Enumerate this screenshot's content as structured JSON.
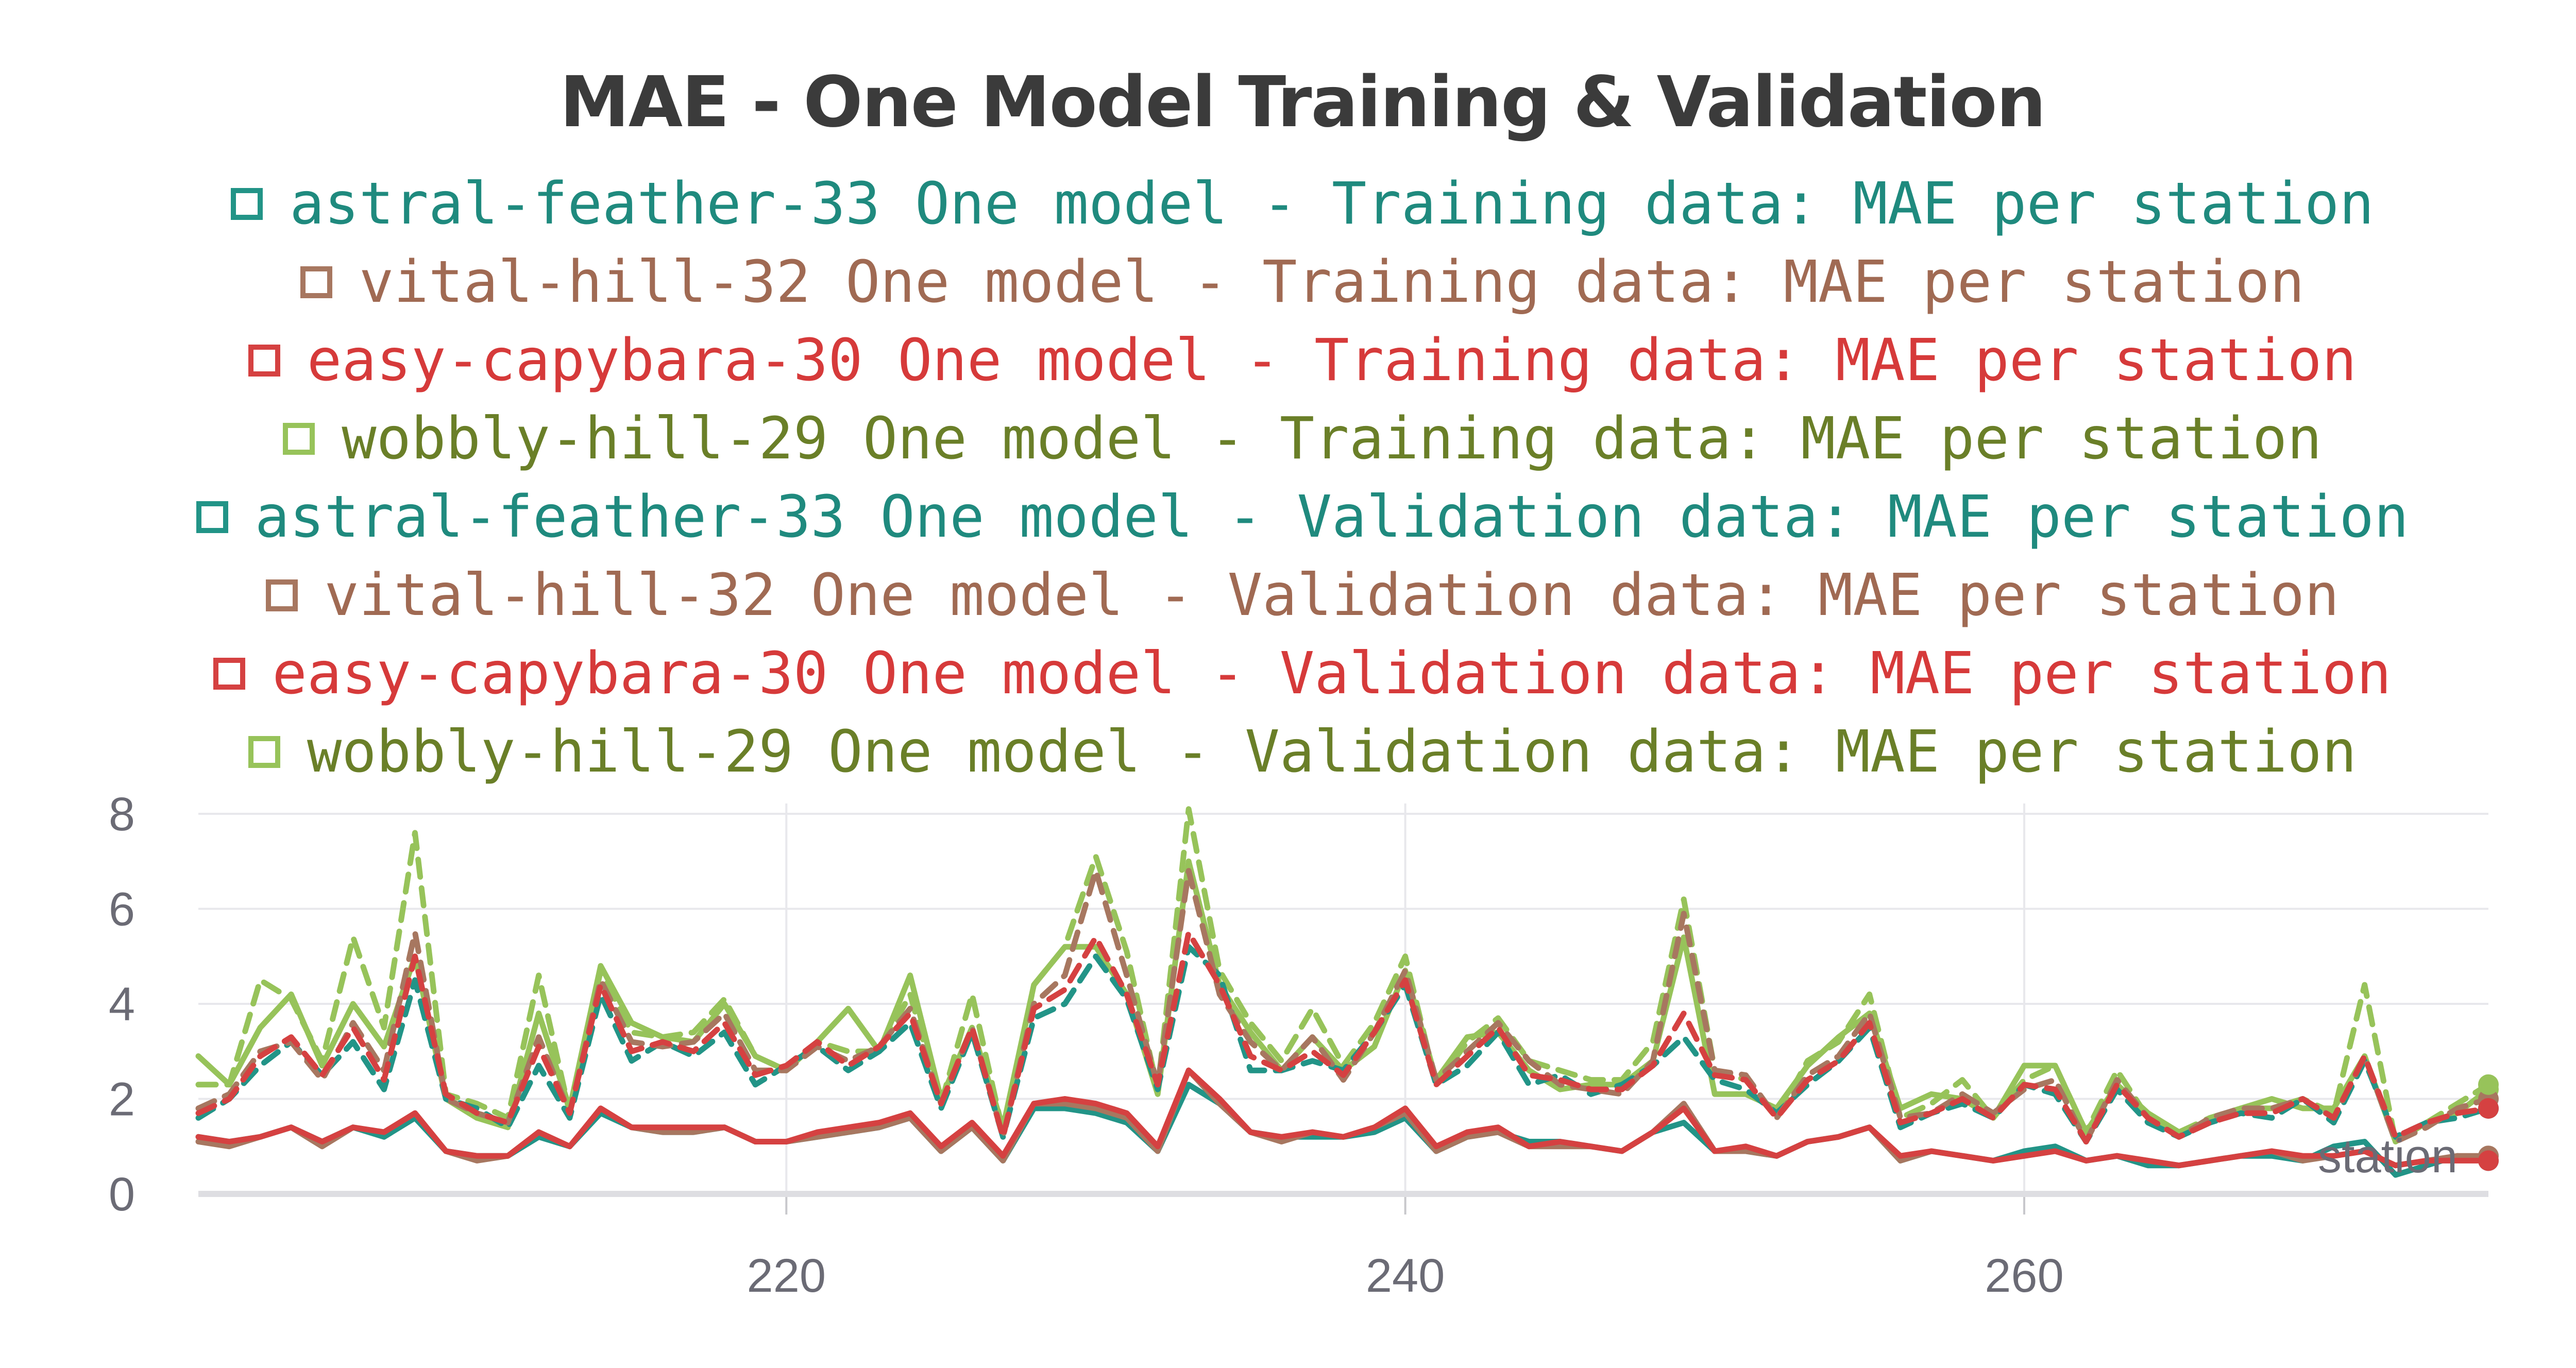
{
  "chart_data": {
    "type": "line",
    "title": "MAE - One Model Training & Validation",
    "xlabel": "station",
    "ylabel": "",
    "xlim": [
      201,
      275
    ],
    "ylim": [
      0,
      8
    ],
    "x_ticks": [
      220,
      240,
      260
    ],
    "y_ticks": [
      0,
      2,
      4,
      6,
      8
    ],
    "grid": true,
    "legend_position": "top",
    "x": [
      201,
      202,
      203,
      204,
      205,
      206,
      207,
      208,
      209,
      210,
      211,
      212,
      213,
      214,
      215,
      216,
      217,
      218,
      219,
      220,
      221,
      222,
      223,
      224,
      225,
      226,
      227,
      228,
      229,
      230,
      231,
      232,
      233,
      234,
      235,
      236,
      237,
      238,
      239,
      240,
      241,
      242,
      243,
      244,
      245,
      246,
      247,
      248,
      249,
      250,
      251,
      252,
      253,
      254,
      255,
      256,
      257,
      258,
      259,
      260,
      261,
      262,
      263,
      264,
      265,
      266,
      267,
      268,
      269,
      270,
      271,
      272,
      273,
      274,
      275
    ],
    "series": [
      {
        "name": "astral-feather-33 One model - Training data: MAE per station",
        "color": "#229487",
        "dash": "solid",
        "values": [
          1.2,
          1.1,
          1.2,
          1.4,
          1.1,
          1.4,
          1.2,
          1.6,
          0.9,
          0.8,
          0.8,
          1.2,
          1.0,
          1.7,
          1.4,
          1.3,
          1.3,
          1.4,
          1.1,
          1.1,
          1.2,
          1.3,
          1.4,
          1.6,
          0.9,
          1.4,
          0.7,
          1.8,
          1.8,
          1.7,
          1.5,
          0.9,
          2.3,
          1.9,
          1.3,
          1.2,
          1.2,
          1.2,
          1.3,
          1.6,
          0.9,
          1.2,
          1.3,
          1.1,
          1.1,
          1.0,
          0.9,
          1.3,
          1.5,
          0.9,
          0.9,
          0.8,
          1.1,
          1.2,
          1.4,
          0.7,
          0.9,
          0.8,
          0.7,
          0.9,
          1.0,
          0.7,
          0.8,
          0.6,
          0.6,
          0.7,
          0.8,
          0.8,
          0.7,
          1.0,
          1.1,
          0.4,
          0.6,
          0.8,
          0.7
        ]
      },
      {
        "name": "vital-hill-32 One model - Training data: MAE per station",
        "color": "#a77760",
        "dash": "solid",
        "values": [
          1.1,
          1.0,
          1.2,
          1.4,
          1.0,
          1.4,
          1.3,
          1.7,
          0.9,
          0.7,
          0.8,
          1.3,
          1.0,
          1.8,
          1.4,
          1.3,
          1.3,
          1.4,
          1.1,
          1.1,
          1.2,
          1.3,
          1.4,
          1.6,
          0.9,
          1.4,
          0.7,
          1.9,
          1.9,
          1.8,
          1.6,
          0.9,
          2.6,
          1.9,
          1.3,
          1.1,
          1.3,
          1.2,
          1.4,
          1.7,
          0.9,
          1.2,
          1.3,
          1.0,
          1.0,
          1.0,
          0.9,
          1.3,
          1.9,
          0.9,
          0.9,
          0.8,
          1.1,
          1.2,
          1.4,
          0.7,
          0.9,
          0.8,
          0.7,
          0.8,
          0.9,
          0.7,
          0.8,
          0.7,
          0.6,
          0.7,
          0.8,
          0.9,
          0.7,
          0.8,
          0.9,
          0.6,
          0.7,
          0.8,
          0.8
        ]
      },
      {
        "name": "easy-capybara-30 One model - Training data: MAE per station",
        "color": "#d54141",
        "dash": "solid",
        "values": [
          1.2,
          1.1,
          1.2,
          1.4,
          1.1,
          1.4,
          1.3,
          1.7,
          0.9,
          0.8,
          0.8,
          1.3,
          1.0,
          1.8,
          1.4,
          1.4,
          1.4,
          1.4,
          1.1,
          1.1,
          1.3,
          1.4,
          1.5,
          1.7,
          1.0,
          1.5,
          0.8,
          1.9,
          2.0,
          1.9,
          1.7,
          1.0,
          2.6,
          2.0,
          1.3,
          1.2,
          1.3,
          1.2,
          1.4,
          1.8,
          1.0,
          1.3,
          1.4,
          1.0,
          1.1,
          1.0,
          0.9,
          1.3,
          1.8,
          0.9,
          1.0,
          0.8,
          1.1,
          1.2,
          1.4,
          0.8,
          0.9,
          0.8,
          0.7,
          0.8,
          0.9,
          0.7,
          0.8,
          0.7,
          0.6,
          0.7,
          0.8,
          0.9,
          0.8,
          0.8,
          0.9,
          0.6,
          0.7,
          0.7,
          0.7
        ]
      },
      {
        "name": "wobbly-hill-29 One model - Training data: MAE per station",
        "color": "#97c35a",
        "dash": "solid",
        "values": [
          2.9,
          2.3,
          3.5,
          4.2,
          2.7,
          4.0,
          3.1,
          5.0,
          2.0,
          1.6,
          1.4,
          3.8,
          1.8,
          4.8,
          3.6,
          3.3,
          3.2,
          4.0,
          2.9,
          2.6,
          3.2,
          3.9,
          3.0,
          4.6,
          2.0,
          3.5,
          1.4,
          4.4,
          5.2,
          5.2,
          4.2,
          2.1,
          7.0,
          4.4,
          3.4,
          2.6,
          3.3,
          2.6,
          3.1,
          4.7,
          2.4,
          3.3,
          3.4,
          2.6,
          2.2,
          2.3,
          2.3,
          2.8,
          5.4,
          2.1,
          2.1,
          1.8,
          2.7,
          3.3,
          3.8,
          1.8,
          2.1,
          2.0,
          1.6,
          2.7,
          2.7,
          1.3,
          2.3,
          1.7,
          1.3,
          1.5,
          1.8,
          2.0,
          1.8,
          1.8,
          2.9,
          1.1,
          1.5,
          1.7,
          2.2
        ]
      },
      {
        "name": "astral-feather-33 One model - Validation data: MAE per station",
        "color": "#229487",
        "dash": "dashed",
        "values": [
          1.6,
          2.0,
          2.7,
          3.2,
          2.5,
          3.2,
          2.2,
          4.5,
          2.0,
          1.8,
          1.4,
          2.7,
          1.6,
          4.2,
          2.8,
          3.2,
          2.9,
          3.4,
          2.3,
          2.7,
          3.1,
          2.6,
          3.0,
          3.6,
          1.8,
          3.4,
          1.2,
          3.7,
          4.0,
          5.0,
          4.1,
          2.2,
          5.2,
          4.6,
          2.6,
          2.6,
          2.8,
          2.6,
          3.4,
          4.4,
          2.3,
          2.7,
          3.4,
          2.3,
          2.5,
          2.1,
          2.3,
          2.7,
          3.3,
          2.4,
          2.2,
          1.7,
          2.3,
          2.8,
          3.5,
          1.4,
          1.7,
          1.9,
          1.6,
          2.3,
          2.1,
          1.1,
          2.2,
          1.5,
          1.2,
          1.5,
          1.7,
          1.6,
          2.0,
          1.5,
          2.8,
          1.2,
          1.5,
          1.6,
          1.8
        ]
      },
      {
        "name": "vital-hill-32 One model - Validation data: MAE per station",
        "color": "#a77760",
        "dash": "dashed",
        "values": [
          1.8,
          2.1,
          3.0,
          3.2,
          2.4,
          3.6,
          2.6,
          5.5,
          2.0,
          1.7,
          1.5,
          3.3,
          1.7,
          4.5,
          3.2,
          3.1,
          3.2,
          3.8,
          2.6,
          2.6,
          3.1,
          2.8,
          3.1,
          3.9,
          1.9,
          3.5,
          1.2,
          4.0,
          4.6,
          6.8,
          4.6,
          2.3,
          6.8,
          4.2,
          3.2,
          2.6,
          3.3,
          2.4,
          3.4,
          4.7,
          2.4,
          3.0,
          3.6,
          2.8,
          2.3,
          2.2,
          2.1,
          2.8,
          5.9,
          2.6,
          2.5,
          1.6,
          2.5,
          2.9,
          3.8,
          1.6,
          1.7,
          2.1,
          1.7,
          2.2,
          2.4,
          1.1,
          2.4,
          1.6,
          1.2,
          1.6,
          1.8,
          1.8,
          2.0,
          1.6,
          2.9,
          1.1,
          1.4,
          1.8,
          2.0
        ]
      },
      {
        "name": "easy-capybara-30 One model - Validation data: MAE per station",
        "color": "#d54141",
        "dash": "dashed",
        "values": [
          1.7,
          2.0,
          2.9,
          3.3,
          2.5,
          3.5,
          2.4,
          5.0,
          2.1,
          1.7,
          1.5,
          3.1,
          1.7,
          4.4,
          3.0,
          3.2,
          3.0,
          3.6,
          2.5,
          2.7,
          3.2,
          2.7,
          3.1,
          3.8,
          1.9,
          3.5,
          1.2,
          3.9,
          4.3,
          5.4,
          4.2,
          2.3,
          5.5,
          4.4,
          2.9,
          2.6,
          3.0,
          2.5,
          3.4,
          4.5,
          2.3,
          2.9,
          3.5,
          2.5,
          2.4,
          2.2,
          2.2,
          2.7,
          3.8,
          2.5,
          2.4,
          1.6,
          2.4,
          2.8,
          3.6,
          1.5,
          1.7,
          2.0,
          1.6,
          2.3,
          2.2,
          1.1,
          2.3,
          1.6,
          1.2,
          1.5,
          1.7,
          1.7,
          2.0,
          1.6,
          2.9,
          1.2,
          1.5,
          1.7,
          1.8
        ]
      },
      {
        "name": "wobbly-hill-29 One model - Validation data: MAE per station",
        "color": "#97c35a",
        "dash": "dashed",
        "values": [
          2.3,
          2.3,
          4.5,
          4.1,
          2.8,
          5.4,
          3.5,
          7.6,
          2.1,
          1.9,
          1.6,
          4.6,
          1.7,
          4.7,
          3.4,
          3.3,
          3.4,
          4.1,
          2.9,
          2.6,
          3.2,
          3.0,
          3.0,
          4.2,
          1.9,
          4.2,
          1.3,
          4.4,
          5.2,
          7.1,
          5.1,
          2.2,
          8.1,
          4.7,
          3.6,
          2.8,
          3.9,
          2.7,
          3.6,
          5.0,
          2.3,
          3.2,
          3.7,
          2.8,
          2.6,
          2.4,
          2.4,
          3.2,
          6.2,
          2.6,
          2.4,
          1.6,
          2.8,
          3.2,
          4.2,
          1.6,
          1.9,
          2.4,
          1.6,
          2.4,
          2.7,
          1.3,
          2.6,
          1.6,
          1.3,
          1.6,
          1.8,
          1.8,
          2.0,
          1.7,
          4.4,
          1.1,
          1.5,
          1.9,
          2.3
        ]
      }
    ]
  }
}
